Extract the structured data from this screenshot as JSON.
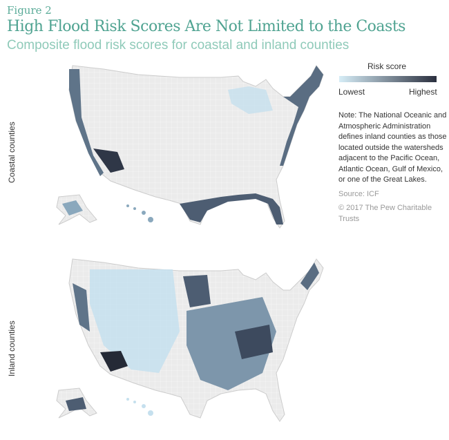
{
  "figure_label": "Figure 2",
  "title": "High Flood Risk Scores Are Not Limited to the Coasts",
  "subtitle": "Composite flood risk scores for coastal and inland counties",
  "panels": [
    {
      "label": "Coastal counties"
    },
    {
      "label": "Inland counties"
    }
  ],
  "legend": {
    "title": "Risk score",
    "low": "Lowest",
    "high": "Highest",
    "colors": [
      "#d6edf7",
      "#2a2f3e"
    ]
  },
  "note": "Note: The National Oceanic and Atmospheric Administration defines inland counties as those located outside the watersheds adjacent to the Pacific Ocean, Atlantic Ocean, Gulf of Mexico, or one of the Great Lakes.",
  "source": "Source: ICF",
  "copyright": "© 2017 The Pew Charitable Trusts",
  "colors": {
    "base": "#ebebeb",
    "light": "#c5e0ee",
    "mid": "#8aa8bd",
    "dark": "#3d4a5e",
    "darkest": "#252a36"
  }
}
